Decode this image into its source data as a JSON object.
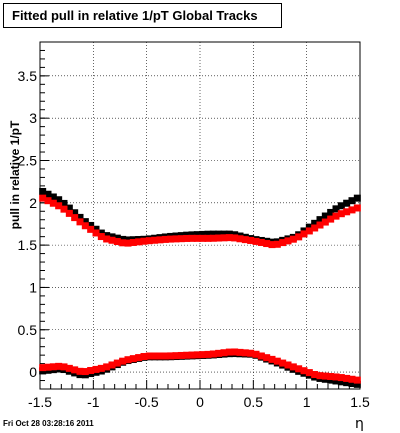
{
  "chart_data": {
    "type": "scatter",
    "title": "Fitted pull in relative 1/pT  Global Tracks",
    "xlabel": "η",
    "ylabel": "pull in relative 1/pT",
    "xlim": [
      -1.5,
      1.5
    ],
    "ylim": [
      -0.2,
      3.9
    ],
    "x_ticks": [
      "-1.5",
      "-1",
      "-0.5",
      "0",
      "0.5",
      "1",
      "1.5"
    ],
    "y_ticks": [
      "0",
      "0.5",
      "1",
      "1.5",
      "2",
      "2.5",
      "3",
      "3.5"
    ],
    "grid": true,
    "colors": {
      "black": "#000000",
      "red": "#ff0000"
    },
    "series": [
      {
        "color": "#000000",
        "x": [
          -1.5,
          -1.3,
          -1.1,
          -0.9,
          -0.7,
          -0.5,
          -0.3,
          -0.1,
          0.1,
          0.3,
          0.5,
          0.7,
          0.9,
          1.1,
          1.3,
          1.5
        ],
        "y": [
          2.15,
          2.02,
          1.8,
          1.62,
          1.56,
          1.57,
          1.6,
          1.62,
          1.63,
          1.63,
          1.57,
          1.53,
          1.6,
          1.78,
          1.95,
          2.07
        ]
      },
      {
        "color": "#ff0000",
        "x": [
          -1.5,
          -1.3,
          -1.1,
          -0.9,
          -0.7,
          -0.5,
          -0.3,
          -0.1,
          0.1,
          0.3,
          0.5,
          0.7,
          0.9,
          1.1,
          1.3,
          1.5
        ],
        "y": [
          2.07,
          1.95,
          1.75,
          1.58,
          1.52,
          1.55,
          1.57,
          1.58,
          1.58,
          1.59,
          1.55,
          1.5,
          1.58,
          1.72,
          1.86,
          1.95
        ]
      },
      {
        "color": "#000000",
        "x": [
          -1.5,
          -1.3,
          -1.1,
          -0.9,
          -0.7,
          -0.5,
          -0.3,
          -0.1,
          0.1,
          0.3,
          0.5,
          0.7,
          0.9,
          1.1,
          1.3,
          1.5
        ],
        "y": [
          0.01,
          0.04,
          -0.04,
          0.02,
          0.13,
          0.18,
          0.18,
          0.19,
          0.2,
          0.22,
          0.21,
          0.12,
          0.02,
          -0.07,
          -0.11,
          -0.15
        ]
      },
      {
        "color": "#ff0000",
        "x": [
          -1.5,
          -1.3,
          -1.1,
          -0.9,
          -0.7,
          -0.5,
          -0.3,
          -0.1,
          0.1,
          0.3,
          0.5,
          0.7,
          0.9,
          1.1,
          1.3,
          1.5
        ],
        "y": [
          0.05,
          0.07,
          0.0,
          0.05,
          0.14,
          0.19,
          0.19,
          0.2,
          0.21,
          0.24,
          0.22,
          0.14,
          0.05,
          -0.04,
          -0.06,
          -0.1
        ]
      }
    ]
  },
  "footer": "Fri Oct 28 03:28:16 2011"
}
